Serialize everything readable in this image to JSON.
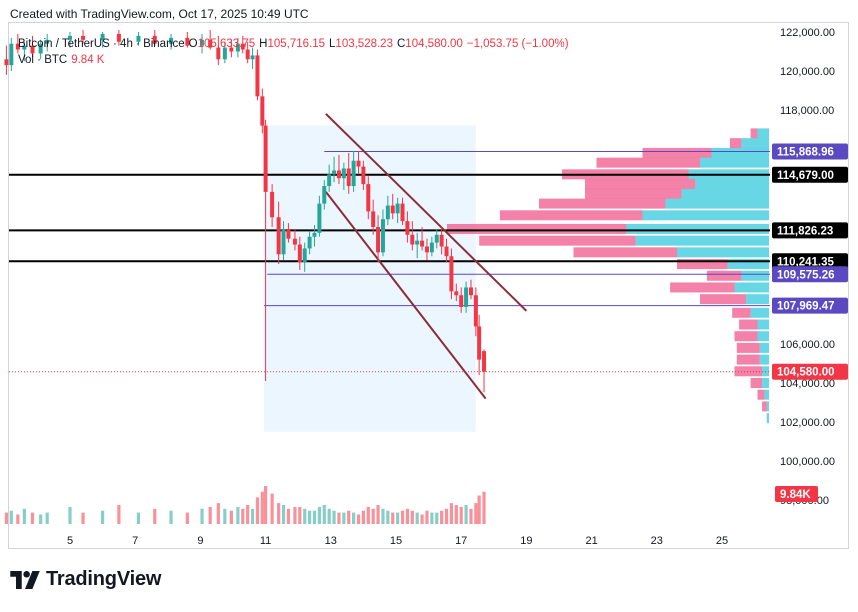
{
  "header": {
    "caption": "Created with TradingView.com, Oct 17, 2025 10:49 UTC"
  },
  "legend": {
    "symbol": "Bitcoin / TetherUS · 4h · Binance",
    "open_label": "O",
    "open_value": "105,633.75",
    "high_label": "H",
    "high_value": "105,716.15",
    "low_label": "L",
    "low_value": "103,528.23",
    "close_label": "C",
    "close_value": "104,580.00",
    "change": "−1,053.75 (−1.00%)",
    "volume_label": "Vol · BTC",
    "volume_value": "9.84 K"
  },
  "branding": {
    "wordmark": "TradingView",
    "icon": "tradingview-logo-icon"
  },
  "colors": {
    "up": "#26a69a",
    "down": "#f23645",
    "channel": "#8d2d37",
    "level_line": "#000000",
    "purple": "#5b49c2",
    "range_fill": "#e3f2fd",
    "profile_up": "#4dd0e1",
    "profile_down": "#f06292"
  },
  "chart_data": {
    "type": "candlestick",
    "symbol": "BTCUSDT",
    "timeframe": "4h",
    "exchange": "Binance",
    "x_ticks": [
      "5",
      "7",
      "9",
      "11",
      "13",
      "15",
      "17",
      "19",
      "21",
      "23",
      "25"
    ],
    "y_ticks": [
      "122,000.00",
      "120,000.00",
      "118,000.00",
      "106,000.00",
      "104,000.00",
      "102,000.00",
      "100,000.00",
      "98,000.00"
    ],
    "ylim": [
      97600,
      122400
    ],
    "levels": [
      {
        "label": "114,679.00",
        "value": 114679,
        "style": "black"
      },
      {
        "label": "111,826.23",
        "value": 111826.23,
        "style": "black"
      },
      {
        "label": "110,241.35",
        "value": 110241.35,
        "style": "black"
      },
      {
        "label": "115,868.96",
        "value": 115868.96,
        "style": "purple"
      },
      {
        "label": "109,575.26",
        "value": 109575.26,
        "style": "purple"
      },
      {
        "label": "107,969.47",
        "value": 107969.47,
        "style": "purple"
      }
    ],
    "last_price": {
      "label": "104,580.00",
      "value": 104580
    },
    "volume_badge": "9.84K",
    "channel": {
      "upper": [
        [
          12.85,
          117800
        ],
        [
          19.0,
          107700
        ]
      ],
      "lower": [
        [
          12.85,
          113800
        ],
        [
          17.75,
          103200
        ]
      ]
    },
    "range_box": {
      "x0": 10.95,
      "x1": 17.45,
      "y0": 101500,
      "y1": 117200
    },
    "candles": [
      {
        "t": 3.05,
        "o": 120600,
        "h": 121300,
        "l": 119800,
        "c": 120300
      },
      {
        "t": 3.2,
        "o": 120300,
        "h": 121700,
        "l": 120000,
        "c": 121400
      },
      {
        "t": 3.4,
        "o": 121400,
        "h": 121900,
        "l": 120900,
        "c": 121100
      },
      {
        "t": 3.6,
        "o": 121100,
        "h": 121500,
        "l": 120500,
        "c": 121300
      },
      {
        "t": 3.85,
        "o": 121300,
        "h": 121800,
        "l": 120700,
        "c": 120900
      },
      {
        "t": 4.1,
        "o": 120900,
        "h": 121600,
        "l": 120600,
        "c": 121400
      },
      {
        "t": 4.3,
        "o": 121400,
        "h": 121900,
        "l": 121000,
        "c": 121600
      },
      {
        "t": 5.0,
        "o": 121600,
        "h": 122000,
        "l": 121200,
        "c": 121800
      },
      {
        "t": 5.4,
        "o": 121800,
        "h": 122100,
        "l": 121400,
        "c": 121600
      },
      {
        "t": 6.0,
        "o": 121600,
        "h": 122000,
        "l": 121200,
        "c": 121900
      },
      {
        "t": 6.5,
        "o": 121900,
        "h": 122100,
        "l": 121300,
        "c": 121500
      },
      {
        "t": 7.1,
        "o": 121500,
        "h": 122000,
        "l": 121300,
        "c": 121800
      },
      {
        "t": 7.6,
        "o": 121800,
        "h": 122100,
        "l": 121300,
        "c": 121400
      },
      {
        "t": 8.1,
        "o": 121400,
        "h": 121900,
        "l": 121100,
        "c": 121700
      },
      {
        "t": 8.6,
        "o": 121700,
        "h": 122000,
        "l": 121200,
        "c": 121300
      },
      {
        "t": 9.05,
        "o": 121300,
        "h": 121900,
        "l": 120900,
        "c": 121600
      },
      {
        "t": 9.3,
        "o": 121600,
        "h": 122100,
        "l": 121100,
        "c": 121200
      },
      {
        "t": 9.55,
        "o": 121200,
        "h": 121800,
        "l": 120300,
        "c": 120600
      },
      {
        "t": 9.75,
        "o": 120600,
        "h": 121500,
        "l": 120400,
        "c": 121200
      },
      {
        "t": 9.95,
        "o": 121200,
        "h": 121600,
        "l": 120700,
        "c": 121000
      },
      {
        "t": 10.15,
        "o": 121000,
        "h": 121700,
        "l": 120700,
        "c": 121400
      },
      {
        "t": 10.3,
        "o": 121400,
        "h": 121800,
        "l": 120900,
        "c": 121100
      },
      {
        "t": 10.45,
        "o": 121100,
        "h": 121500,
        "l": 120400,
        "c": 120600
      },
      {
        "t": 10.6,
        "o": 120600,
        "h": 121200,
        "l": 120100,
        "c": 120800
      },
      {
        "t": 10.75,
        "o": 120800,
        "h": 121100,
        "l": 118500,
        "c": 118700
      },
      {
        "t": 10.9,
        "o": 118700,
        "h": 119100,
        "l": 116800,
        "c": 117200
      },
      {
        "t": 11.0,
        "o": 117200,
        "h": 117500,
        "l": 104100,
        "c": 113800
      },
      {
        "t": 11.2,
        "o": 113800,
        "h": 114200,
        "l": 112000,
        "c": 112500
      },
      {
        "t": 11.4,
        "o": 112500,
        "h": 113300,
        "l": 110100,
        "c": 110600
      },
      {
        "t": 11.55,
        "o": 110600,
        "h": 112300,
        "l": 110300,
        "c": 111900
      },
      {
        "t": 11.7,
        "o": 111900,
        "h": 112200,
        "l": 111200,
        "c": 111400
      },
      {
        "t": 11.9,
        "o": 111400,
        "h": 111900,
        "l": 110800,
        "c": 111100
      },
      {
        "t": 12.05,
        "o": 111100,
        "h": 111500,
        "l": 109800,
        "c": 110200
      },
      {
        "t": 12.2,
        "o": 110200,
        "h": 111200,
        "l": 109700,
        "c": 110900
      },
      {
        "t": 12.35,
        "o": 110900,
        "h": 111800,
        "l": 110600,
        "c": 111500
      },
      {
        "t": 12.5,
        "o": 111500,
        "h": 112100,
        "l": 111000,
        "c": 111700
      },
      {
        "t": 12.65,
        "o": 111700,
        "h": 113600,
        "l": 111500,
        "c": 113200
      },
      {
        "t": 12.8,
        "o": 113200,
        "h": 114400,
        "l": 112900,
        "c": 114100
      },
      {
        "t": 12.95,
        "o": 114100,
        "h": 115200,
        "l": 113800,
        "c": 114700
      },
      {
        "t": 13.1,
        "o": 114700,
        "h": 115600,
        "l": 114300,
        "c": 114900
      },
      {
        "t": 13.25,
        "o": 114900,
        "h": 115700,
        "l": 114200,
        "c": 114500
      },
      {
        "t": 13.4,
        "o": 114500,
        "h": 115300,
        "l": 113900,
        "c": 115000
      },
      {
        "t": 13.55,
        "o": 115000,
        "h": 115800,
        "l": 113700,
        "c": 114100
      },
      {
        "t": 13.7,
        "o": 114100,
        "h": 115900,
        "l": 113800,
        "c": 115400
      },
      {
        "t": 13.85,
        "o": 115400,
        "h": 115900,
        "l": 114700,
        "c": 115100
      },
      {
        "t": 14.0,
        "o": 115100,
        "h": 115400,
        "l": 113900,
        "c": 114200
      },
      {
        "t": 14.15,
        "o": 114200,
        "h": 114600,
        "l": 112400,
        "c": 112800
      },
      {
        "t": 14.3,
        "o": 112800,
        "h": 113400,
        "l": 111600,
        "c": 112000
      },
      {
        "t": 14.45,
        "o": 112000,
        "h": 112600,
        "l": 110200,
        "c": 110700
      },
      {
        "t": 14.6,
        "o": 110700,
        "h": 112900,
        "l": 110500,
        "c": 112400
      },
      {
        "t": 14.75,
        "o": 112400,
        "h": 113600,
        "l": 112100,
        "c": 113100
      },
      {
        "t": 14.9,
        "o": 113100,
        "h": 113700,
        "l": 112400,
        "c": 112700
      },
      {
        "t": 15.05,
        "o": 112700,
        "h": 113500,
        "l": 112200,
        "c": 113200
      },
      {
        "t": 15.2,
        "o": 113200,
        "h": 113500,
        "l": 112100,
        "c": 112300
      },
      {
        "t": 15.35,
        "o": 112300,
        "h": 112800,
        "l": 111200,
        "c": 111600
      },
      {
        "t": 15.5,
        "o": 111600,
        "h": 112300,
        "l": 110800,
        "c": 111100
      },
      {
        "t": 15.65,
        "o": 111100,
        "h": 111700,
        "l": 110400,
        "c": 111300
      },
      {
        "t": 15.8,
        "o": 111300,
        "h": 112000,
        "l": 110800,
        "c": 111000
      },
      {
        "t": 15.95,
        "o": 111000,
        "h": 111400,
        "l": 110300,
        "c": 110700
      },
      {
        "t": 16.1,
        "o": 110700,
        "h": 111500,
        "l": 110500,
        "c": 111200
      },
      {
        "t": 16.25,
        "o": 111200,
        "h": 111900,
        "l": 110900,
        "c": 111600
      },
      {
        "t": 16.4,
        "o": 111600,
        "h": 112000,
        "l": 110600,
        "c": 111000
      },
      {
        "t": 16.55,
        "o": 111000,
        "h": 111400,
        "l": 110200,
        "c": 110500
      },
      {
        "t": 16.7,
        "o": 110500,
        "h": 110900,
        "l": 108300,
        "c": 108700
      },
      {
        "t": 16.85,
        "o": 108700,
        "h": 109100,
        "l": 108200,
        "c": 108500
      },
      {
        "t": 17.0,
        "o": 108500,
        "h": 108900,
        "l": 107600,
        "c": 107900
      },
      {
        "t": 17.15,
        "o": 107900,
        "h": 109200,
        "l": 107600,
        "c": 108900
      },
      {
        "t": 17.3,
        "o": 108900,
        "h": 109300,
        "l": 108300,
        "c": 108500
      },
      {
        "t": 17.45,
        "o": 108500,
        "h": 108900,
        "l": 106400,
        "c": 106900
      },
      {
        "t": 17.55,
        "o": 106900,
        "h": 107500,
        "l": 104400,
        "c": 105200
      },
      {
        "t": 17.7,
        "o": 105633.75,
        "h": 105716.15,
        "l": 103528.23,
        "c": 104580
      }
    ],
    "volume": [
      {
        "t": 3.05,
        "v": 0.3,
        "up": false
      },
      {
        "t": 3.2,
        "v": 0.35,
        "up": true
      },
      {
        "t": 3.4,
        "v": 0.25,
        "up": false
      },
      {
        "t": 3.6,
        "v": 0.4,
        "up": true
      },
      {
        "t": 3.85,
        "v": 0.3,
        "up": false
      },
      {
        "t": 4.1,
        "v": 0.25,
        "up": true
      },
      {
        "t": 4.3,
        "v": 0.3,
        "up": true
      },
      {
        "t": 5.0,
        "v": 0.45,
        "up": true
      },
      {
        "t": 5.4,
        "v": 0.3,
        "up": false
      },
      {
        "t": 6.0,
        "v": 0.35,
        "up": true
      },
      {
        "t": 6.5,
        "v": 0.5,
        "up": false
      },
      {
        "t": 7.1,
        "v": 0.3,
        "up": true
      },
      {
        "t": 7.6,
        "v": 0.4,
        "up": false
      },
      {
        "t": 8.1,
        "v": 0.35,
        "up": true
      },
      {
        "t": 8.6,
        "v": 0.3,
        "up": false
      },
      {
        "t": 9.05,
        "v": 0.4,
        "up": true
      },
      {
        "t": 9.3,
        "v": 0.45,
        "up": false
      },
      {
        "t": 9.55,
        "v": 0.55,
        "up": false
      },
      {
        "t": 9.75,
        "v": 0.4,
        "up": true
      },
      {
        "t": 9.95,
        "v": 0.35,
        "up": false
      },
      {
        "t": 10.15,
        "v": 0.45,
        "up": true
      },
      {
        "t": 10.3,
        "v": 0.4,
        "up": false
      },
      {
        "t": 10.45,
        "v": 0.5,
        "up": false
      },
      {
        "t": 10.6,
        "v": 0.4,
        "up": true
      },
      {
        "t": 10.75,
        "v": 0.7,
        "up": false
      },
      {
        "t": 10.9,
        "v": 0.85,
        "up": false
      },
      {
        "t": 11.0,
        "v": 1.0,
        "up": false
      },
      {
        "t": 11.2,
        "v": 0.8,
        "up": false
      },
      {
        "t": 11.4,
        "v": 0.55,
        "up": false
      },
      {
        "t": 11.55,
        "v": 0.5,
        "up": true
      },
      {
        "t": 11.7,
        "v": 0.4,
        "up": false
      },
      {
        "t": 11.9,
        "v": 0.45,
        "up": false
      },
      {
        "t": 12.05,
        "v": 0.45,
        "up": false
      },
      {
        "t": 12.2,
        "v": 0.4,
        "up": true
      },
      {
        "t": 12.35,
        "v": 0.35,
        "up": true
      },
      {
        "t": 12.5,
        "v": 0.35,
        "up": true
      },
      {
        "t": 12.65,
        "v": 0.45,
        "up": true
      },
      {
        "t": 12.8,
        "v": 0.5,
        "up": true
      },
      {
        "t": 12.95,
        "v": 0.4,
        "up": true
      },
      {
        "t": 13.1,
        "v": 0.35,
        "up": true
      },
      {
        "t": 13.25,
        "v": 0.3,
        "up": false
      },
      {
        "t": 13.4,
        "v": 0.3,
        "up": true
      },
      {
        "t": 13.55,
        "v": 0.35,
        "up": false
      },
      {
        "t": 13.7,
        "v": 0.3,
        "up": true
      },
      {
        "t": 13.85,
        "v": 0.25,
        "up": false
      },
      {
        "t": 14.0,
        "v": 0.35,
        "up": false
      },
      {
        "t": 14.15,
        "v": 0.45,
        "up": false
      },
      {
        "t": 14.3,
        "v": 0.4,
        "up": false
      },
      {
        "t": 14.45,
        "v": 0.5,
        "up": false
      },
      {
        "t": 14.6,
        "v": 0.4,
        "up": true
      },
      {
        "t": 14.75,
        "v": 0.35,
        "up": true
      },
      {
        "t": 14.9,
        "v": 0.3,
        "up": false
      },
      {
        "t": 15.05,
        "v": 0.3,
        "up": true
      },
      {
        "t": 15.2,
        "v": 0.35,
        "up": false
      },
      {
        "t": 15.35,
        "v": 0.4,
        "up": false
      },
      {
        "t": 15.5,
        "v": 0.35,
        "up": false
      },
      {
        "t": 15.65,
        "v": 0.3,
        "up": true
      },
      {
        "t": 15.8,
        "v": 0.25,
        "up": false
      },
      {
        "t": 15.95,
        "v": 0.35,
        "up": false
      },
      {
        "t": 16.1,
        "v": 0.3,
        "up": true
      },
      {
        "t": 16.25,
        "v": 0.3,
        "up": true
      },
      {
        "t": 16.4,
        "v": 0.35,
        "up": false
      },
      {
        "t": 16.55,
        "v": 0.4,
        "up": false
      },
      {
        "t": 16.7,
        "v": 0.55,
        "up": false
      },
      {
        "t": 16.85,
        "v": 0.5,
        "up": false
      },
      {
        "t": 17.0,
        "v": 0.45,
        "up": false
      },
      {
        "t": 17.15,
        "v": 0.5,
        "up": true
      },
      {
        "t": 17.3,
        "v": 0.4,
        "up": false
      },
      {
        "t": 17.45,
        "v": 0.55,
        "up": false
      },
      {
        "t": 17.55,
        "v": 0.75,
        "up": false
      },
      {
        "t": 17.7,
        "v": 0.85,
        "up": false
      }
    ],
    "volume_profile": [
      {
        "price": 116800,
        "up": 0.05,
        "down": 0.03
      },
      {
        "price": 116300,
        "up": 0.12,
        "down": 0.05
      },
      {
        "price": 115800,
        "up": 0.25,
        "down": 0.3
      },
      {
        "price": 115300,
        "up": 0.3,
        "down": 0.45
      },
      {
        "price": 114700,
        "up": 0.35,
        "down": 0.55
      },
      {
        "price": 114200,
        "up": 0.32,
        "down": 0.48
      },
      {
        "price": 113700,
        "up": 0.38,
        "down": 0.42
      },
      {
        "price": 113200,
        "up": 0.45,
        "down": 0.55
      },
      {
        "price": 112600,
        "up": 0.55,
        "down": 0.62
      },
      {
        "price": 111900,
        "up": 0.62,
        "down": 0.78
      },
      {
        "price": 111300,
        "up": 0.58,
        "down": 0.68
      },
      {
        "price": 110700,
        "up": 0.4,
        "down": 0.45
      },
      {
        "price": 110100,
        "up": 0.18,
        "down": 0.22
      },
      {
        "price": 109500,
        "up": 0.12,
        "down": 0.15
      },
      {
        "price": 108900,
        "up": 0.15,
        "down": 0.28
      },
      {
        "price": 108300,
        "up": 0.1,
        "down": 0.2
      },
      {
        "price": 107600,
        "up": 0.08,
        "down": 0.08
      },
      {
        "price": 107000,
        "up": 0.05,
        "down": 0.08
      },
      {
        "price": 106400,
        "up": 0.05,
        "down": 0.1
      },
      {
        "price": 105800,
        "up": 0.04,
        "down": 0.1
      },
      {
        "price": 105200,
        "up": 0.04,
        "down": 0.1
      },
      {
        "price": 104600,
        "up": 0.03,
        "down": 0.12
      },
      {
        "price": 104000,
        "up": 0.03,
        "down": 0.05
      },
      {
        "price": 103400,
        "up": 0.02,
        "down": 0.03
      },
      {
        "price": 102800,
        "up": 0.01,
        "down": 0.02
      },
      {
        "price": 102200,
        "up": 0.01,
        "down": 0.0
      }
    ]
  }
}
